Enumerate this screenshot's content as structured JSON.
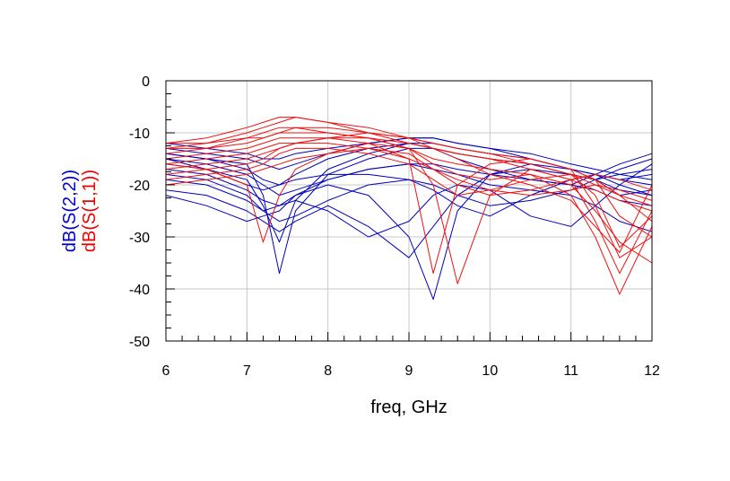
{
  "chart_data": {
    "type": "line",
    "xlabel": "freq, GHz",
    "ylabels": [
      {
        "text": "dB(S(2,2))",
        "color": "#0000cc"
      },
      {
        "text": "dB(S(1,1))",
        "color": "#ee0000"
      }
    ],
    "xlim": [
      6,
      12
    ],
    "ylim": [
      -50,
      0
    ],
    "xticks": [
      "6",
      "7",
      "8",
      "9",
      "10",
      "11",
      "12"
    ],
    "yticks": [
      "0",
      "-10",
      "-20",
      "-30",
      "-40",
      "-50"
    ],
    "grid": true,
    "series_colors": {
      "S22": "#0000bb",
      "S11": "#ee1111"
    },
    "x": [
      6.0,
      6.5,
      7.0,
      7.2,
      7.4,
      7.6,
      8.0,
      8.5,
      9.0,
      9.3,
      9.6,
      10.0,
      10.5,
      11.0,
      11.3,
      11.6,
      12.0
    ],
    "series": [
      {
        "group": "S22",
        "values": [
          -14,
          -15,
          -16,
          -22,
          -37,
          -25,
          -18,
          -15,
          -13,
          -13,
          -14,
          -15,
          -16,
          -18,
          -19,
          -18,
          -17
        ]
      },
      {
        "group": "S22",
        "values": [
          -16,
          -17,
          -19,
          -24,
          -31,
          -23,
          -17,
          -14,
          -12,
          -12,
          -13,
          -14,
          -15,
          -17,
          -18,
          -19,
          -18
        ]
      },
      {
        "group": "S22",
        "values": [
          -22,
          -24,
          -27,
          -26,
          -25,
          -22,
          -20,
          -22,
          -30,
          -42,
          -25,
          -18,
          -16,
          -17,
          -18,
          -20,
          -22
        ]
      },
      {
        "group": "S22",
        "values": [
          -21,
          -22,
          -25,
          -27,
          -29,
          -27,
          -24,
          -28,
          -34,
          -28,
          -22,
          -18,
          -17,
          -18,
          -19,
          -22,
          -21
        ]
      },
      {
        "group": "S22",
        "values": [
          -19,
          -20,
          -23,
          -25,
          -24,
          -23,
          -25,
          -30,
          -27,
          -22,
          -20,
          -21,
          -26,
          -28,
          -24,
          -20,
          -16
        ]
      },
      {
        "group": "S22",
        "values": [
          -15,
          -16,
          -18,
          -20,
          -22,
          -21,
          -19,
          -17,
          -16,
          -16,
          -17,
          -18,
          -19,
          -20,
          -21,
          -23,
          -24
        ]
      },
      {
        "group": "S22",
        "values": [
          -13,
          -14,
          -15,
          -16,
          -17,
          -16,
          -14,
          -12,
          -11,
          -11,
          -12,
          -13,
          -14,
          -16,
          -17,
          -18,
          -19
        ]
      },
      {
        "group": "S22",
        "values": [
          -14,
          -15,
          -17,
          -19,
          -20,
          -18,
          -15,
          -13,
          -12,
          -13,
          -15,
          -17,
          -19,
          -20,
          -18,
          -16,
          -14
        ]
      },
      {
        "group": "S22",
        "values": [
          -17,
          -18,
          -21,
          -23,
          -24,
          -22,
          -19,
          -17,
          -16,
          -17,
          -18,
          -20,
          -21,
          -22,
          -24,
          -27,
          -29
        ]
      },
      {
        "group": "S22",
        "values": [
          -12,
          -13,
          -14,
          -15,
          -15,
          -14,
          -13,
          -12,
          -11,
          -11,
          -12,
          -13,
          -15,
          -17,
          -19,
          -21,
          -22
        ]
      },
      {
        "group": "S22",
        "values": [
          -18,
          -19,
          -22,
          -25,
          -27,
          -26,
          -23,
          -20,
          -19,
          -20,
          -22,
          -24,
          -23,
          -21,
          -19,
          -17,
          -15
        ]
      },
      {
        "group": "S22",
        "values": [
          -15,
          -17,
          -20,
          -21,
          -20,
          -19,
          -18,
          -18,
          -19,
          -21,
          -24,
          -26,
          -22,
          -19,
          -18,
          -19,
          -20
        ]
      },
      {
        "group": "S11",
        "values": [
          -13,
          -12,
          -10,
          -9,
          -8,
          -7,
          -8,
          -10,
          -12,
          -13,
          -14,
          -15,
          -16,
          -18,
          -20,
          -22,
          -24
        ]
      },
      {
        "group": "S11",
        "values": [
          -12,
          -11,
          -9,
          -8,
          -7,
          -7,
          -8,
          -9,
          -11,
          -12,
          -13,
          -14,
          -16,
          -18,
          -22,
          -32,
          -26
        ]
      },
      {
        "group": "S11",
        "values": [
          -14,
          -13,
          -11,
          -10,
          -9,
          -9,
          -10,
          -11,
          -13,
          -15,
          -16,
          -17,
          -18,
          -22,
          -30,
          -41,
          -28
        ]
      },
      {
        "group": "S11",
        "values": [
          -16,
          -17,
          -20,
          -31,
          -22,
          -17,
          -14,
          -12,
          -13,
          -16,
          -18,
          -19,
          -18,
          -20,
          -25,
          -31,
          -35
        ]
      },
      {
        "group": "S11",
        "values": [
          -18,
          -17,
          -16,
          -15,
          -13,
          -12,
          -11,
          -11,
          -13,
          -20,
          -39,
          -22,
          -17,
          -19,
          -27,
          -37,
          -25
        ]
      },
      {
        "group": "S11",
        "values": [
          -15,
          -14,
          -13,
          -12,
          -11,
          -11,
          -11,
          -12,
          -15,
          -37,
          -20,
          -16,
          -15,
          -17,
          -24,
          -34,
          -30
        ]
      },
      {
        "group": "S11",
        "values": [
          -20,
          -19,
          -18,
          -17,
          -16,
          -15,
          -14,
          -13,
          -14,
          -17,
          -20,
          -22,
          -21,
          -19,
          -18,
          -19,
          -21
        ]
      },
      {
        "group": "S11",
        "values": [
          -12,
          -12,
          -11,
          -11,
          -10,
          -10,
          -10,
          -11,
          -12,
          -13,
          -14,
          -15,
          -17,
          -19,
          -21,
          -23,
          -25
        ]
      },
      {
        "group": "S11",
        "values": [
          -17,
          -16,
          -15,
          -14,
          -13,
          -12,
          -11,
          -10,
          -11,
          -13,
          -15,
          -18,
          -20,
          -23,
          -28,
          -33,
          -20
        ]
      },
      {
        "group": "S11",
        "values": [
          -19,
          -18,
          -17,
          -16,
          -14,
          -13,
          -13,
          -14,
          -16,
          -19,
          -22,
          -21,
          -19,
          -18,
          -19,
          -22,
          -27
        ]
      },
      {
        "group": "S11",
        "values": [
          -13,
          -13,
          -12,
          -11,
          -10,
          -9,
          -9,
          -10,
          -11,
          -12,
          -13,
          -14,
          -15,
          -17,
          -19,
          -26,
          -30
        ]
      },
      {
        "group": "S11",
        "values": [
          -16,
          -15,
          -14,
          -13,
          -12,
          -12,
          -12,
          -13,
          -15,
          -17,
          -19,
          -21,
          -22,
          -21,
          -20,
          -21,
          -23
        ]
      }
    ]
  }
}
